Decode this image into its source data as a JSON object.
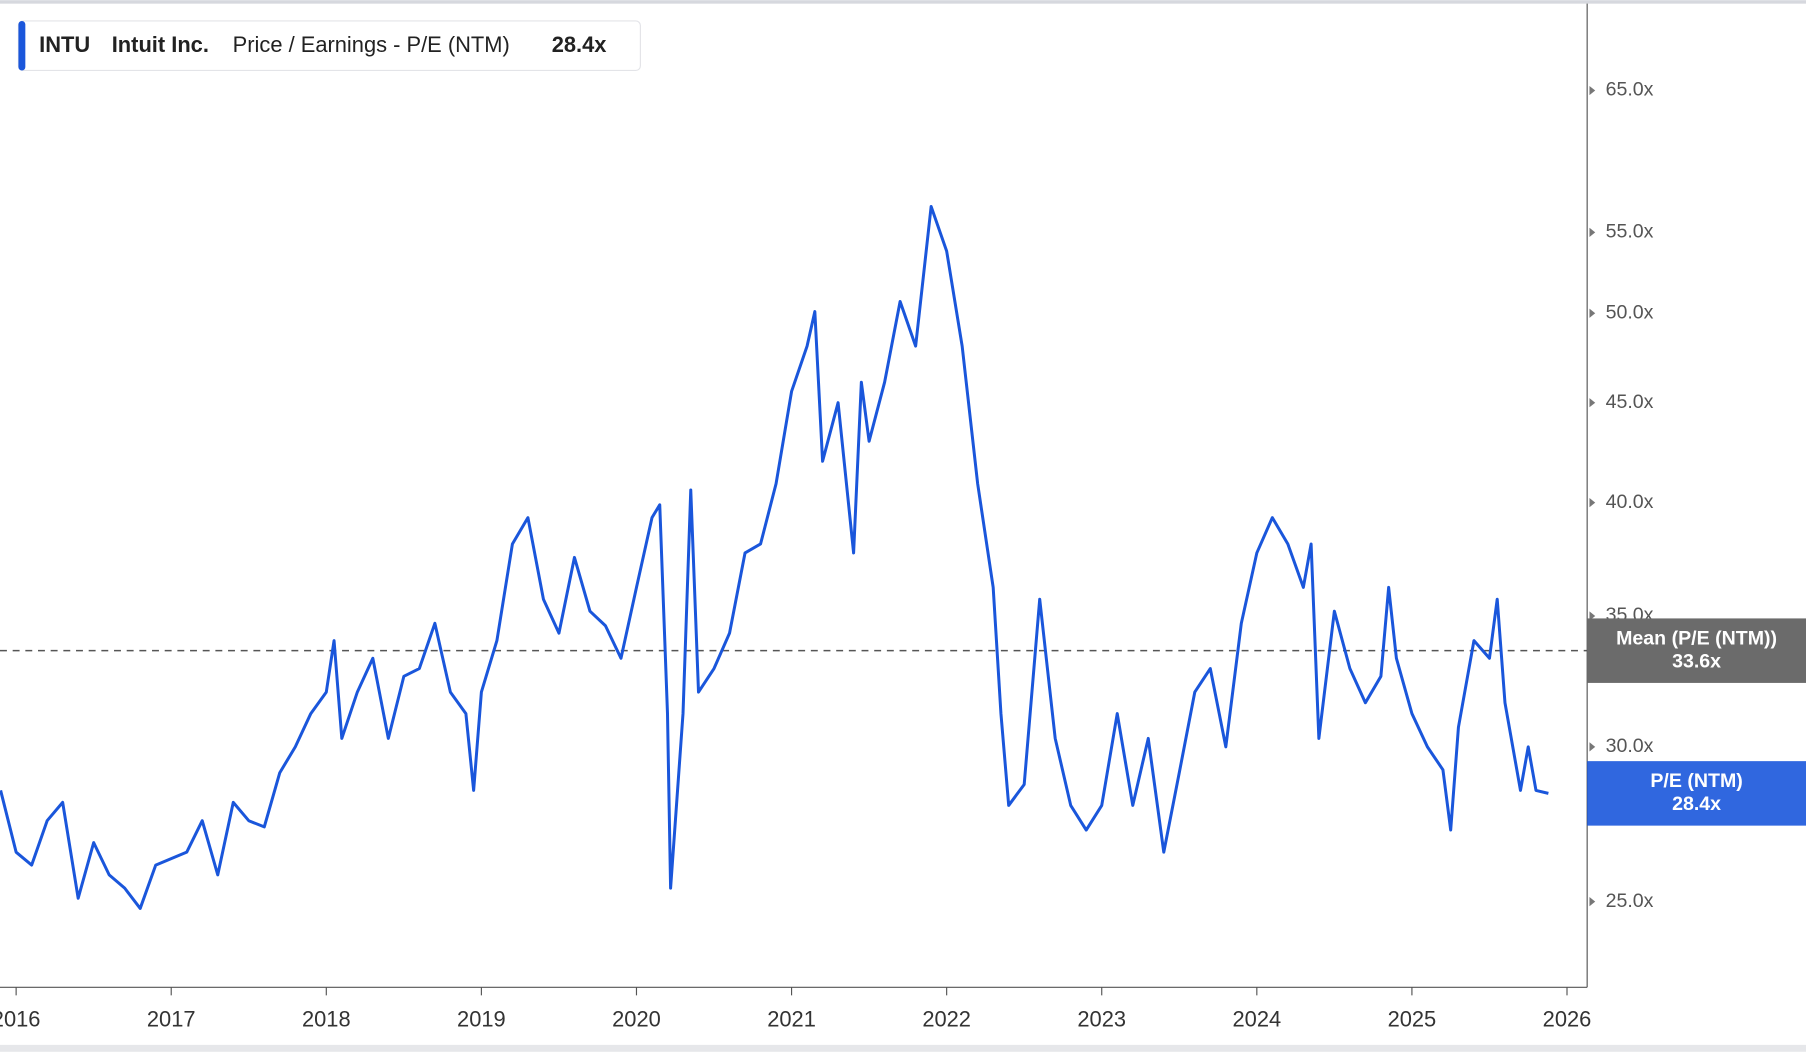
{
  "chart_data": {
    "type": "line",
    "legend": {
      "ticker": "INTU",
      "company": "Intuit Inc.",
      "value_label": "28.4x"
    },
    "x": [
      2015.9,
      2016.0,
      2016.1,
      2016.2,
      2016.3,
      2016.4,
      2016.5,
      2016.6,
      2016.7,
      2016.8,
      2016.9,
      2017.0,
      2017.1,
      2017.2,
      2017.3,
      2017.4,
      2017.5,
      2017.6,
      2017.7,
      2017.8,
      2017.9,
      2018.0,
      2018.05,
      2018.1,
      2018.2,
      2018.3,
      2018.4,
      2018.5,
      2018.6,
      2018.7,
      2018.8,
      2018.9,
      2018.95,
      2019.0,
      2019.1,
      2019.2,
      2019.3,
      2019.4,
      2019.5,
      2019.6,
      2019.7,
      2019.8,
      2019.9,
      2020.0,
      2020.1,
      2020.15,
      2020.2,
      2020.22,
      2020.3,
      2020.35,
      2020.4,
      2020.5,
      2020.6,
      2020.7,
      2020.8,
      2020.9,
      2021.0,
      2021.1,
      2021.15,
      2021.2,
      2021.3,
      2021.4,
      2021.45,
      2021.5,
      2021.6,
      2021.7,
      2021.8,
      2021.9,
      2022.0,
      2022.1,
      2022.2,
      2022.3,
      2022.35,
      2022.4,
      2022.5,
      2022.6,
      2022.7,
      2022.8,
      2022.9,
      2023.0,
      2023.1,
      2023.2,
      2023.3,
      2023.4,
      2023.5,
      2023.6,
      2023.7,
      2023.8,
      2023.9,
      2024.0,
      2024.1,
      2024.2,
      2024.3,
      2024.35,
      2024.4,
      2024.5,
      2024.6,
      2024.7,
      2024.8,
      2024.85,
      2024.9,
      2025.0,
      2025.1,
      2025.2,
      2025.25,
      2025.3,
      2025.4,
      2025.5,
      2025.55,
      2025.6,
      2025.7,
      2025.75,
      2025.8,
      2025.88
    ],
    "series": [
      {
        "name": "Price / Earnings - P/E (NTM)",
        "short_name": "P/E (NTM)",
        "color": "#1a56db",
        "last_value_label": "28.4x",
        "values": [
          28.5,
          26.5,
          26.1,
          27.5,
          28.1,
          25.1,
          26.8,
          25.8,
          25.4,
          24.8,
          26.1,
          26.3,
          26.5,
          27.5,
          25.8,
          28.1,
          27.5,
          27.3,
          29.1,
          30,
          31.2,
          32.0,
          34.0,
          30.3,
          32.0,
          33.3,
          30.3,
          32.6,
          32.9,
          34.7,
          32.0,
          31.2,
          28.5,
          32.0,
          34.0,
          38.1,
          39.3,
          35.7,
          34.3,
          37.5,
          35.2,
          34.6,
          33.3,
          36.2,
          39.3,
          39.9,
          31.2,
          25.4,
          31.2,
          40.6,
          32.0,
          32.9,
          34.3,
          37.7,
          38.1,
          40.9,
          45.6,
          48.1,
          50.1,
          42,
          45,
          37.7,
          46.1,
          43.0,
          46.1,
          50.7,
          48.1,
          56.7,
          53.8,
          48.1,
          40.9,
          36.2,
          31.2,
          28.0,
          28.7,
          35.7,
          30.3,
          28.0,
          27.2,
          28.0,
          31.2,
          28.0,
          30.3,
          26.5,
          29.1,
          32.0,
          32.9,
          30,
          34.7,
          37.7,
          39.3,
          38.1,
          36.2,
          38.1,
          30.3,
          35.2,
          32.9,
          31.6,
          32.6,
          36.2,
          33.3,
          31.2,
          30,
          29.2,
          27.2,
          30.7,
          34.0,
          33.3,
          35.7,
          31.6,
          28.5,
          30,
          28.5,
          28.4
        ]
      }
    ],
    "mean": {
      "label": "Mean (P/E (NTM))",
      "value": 33.6,
      "value_label": "33.6x"
    },
    "xlim": [
      2015.896,
      2026.13
    ],
    "xticks": [
      2016,
      2017,
      2018,
      2019,
      2020,
      2021,
      2022,
      2023,
      2024,
      2025,
      2026
    ],
    "ylim": [
      22.6,
      72.3
    ],
    "yticks": [
      {
        "value": 25,
        "label": "25.0x"
      },
      {
        "value": 30,
        "label": "30.0x"
      },
      {
        "value": 35,
        "label": "35.0x"
      },
      {
        "value": 40,
        "label": "40.0x"
      },
      {
        "value": 45,
        "label": "45.0x"
      },
      {
        "value": 50,
        "label": "50.0x"
      },
      {
        "value": 55,
        "label": "55.0x"
      },
      {
        "value": 65,
        "label": "65.0x"
      }
    ],
    "log_scale": true,
    "mean_color": "#6b6b6b"
  }
}
